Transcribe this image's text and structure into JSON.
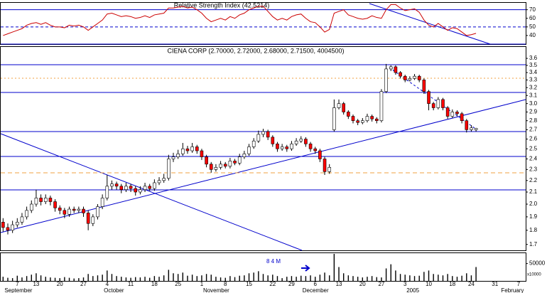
{
  "chart_data": [
    {
      "type": "line",
      "title": "Relative Strength Index (42.5214)",
      "color": "#cc0000",
      "level_color": "#0000cc",
      "ylim": [
        30,
        78
      ],
      "yticks": [
        40,
        50,
        60,
        70
      ],
      "levels": [
        70,
        50,
        30
      ],
      "values": [
        40,
        42,
        44,
        46,
        48,
        52,
        54,
        55,
        53,
        55,
        52,
        50,
        50,
        49,
        52,
        51,
        52,
        50,
        46,
        50,
        54,
        58,
        65,
        66,
        64,
        62,
        63,
        62,
        60,
        61,
        63,
        61,
        64,
        65,
        66,
        72,
        72,
        73,
        74,
        72,
        73,
        70,
        66,
        60,
        56,
        58,
        60,
        58,
        62,
        60,
        64,
        66,
        70,
        72,
        74,
        74,
        68,
        62,
        58,
        60,
        58,
        62,
        64,
        65,
        60,
        56,
        55,
        50,
        44,
        47,
        66,
        68,
        70,
        64,
        62,
        60,
        59,
        60,
        63,
        61,
        60,
        70,
        76,
        76,
        72,
        69,
        70,
        71,
        67,
        58,
        52,
        50,
        54,
        50,
        46,
        49,
        48,
        44,
        40,
        41,
        42.5214,
        null,
        null,
        null,
        null,
        null,
        null,
        null,
        null,
        null,
        null
      ]
    },
    {
      "type": "candlestick",
      "title": "CIENA CORP (2.70000, 2.72000, 2.68000, 2.71500, 4004500)",
      "log": true,
      "up_color": "#ffffff",
      "down_color": "#ff0000",
      "outline_color": "#000000",
      "ylim": [
        1.66,
        3.77
      ],
      "yticks": [
        1.7,
        1.8,
        1.9,
        {
          "value": 2,
          "label": "2.0"
        },
        2.1,
        2.2,
        2.3,
        2.4,
        2.5,
        2.6,
        2.7,
        2.8,
        2.9,
        {
          "value": 3,
          "label": "3.0"
        },
        3.1,
        3.2,
        3.3,
        3.4,
        3.5,
        3.6
      ],
      "categories": [
        null,
        null,
        null,
        "7",
        null,
        null,
        null,
        "13",
        null,
        null,
        null,
        null,
        "20",
        null,
        null,
        null,
        null,
        "27",
        null,
        null,
        null,
        null,
        "4",
        null,
        null,
        null,
        null,
        "11",
        null,
        null,
        null,
        null,
        "18",
        null,
        null,
        null,
        null,
        "25",
        null,
        null,
        null,
        null,
        "1",
        null,
        null,
        null,
        null,
        "8",
        null,
        null,
        null,
        null,
        "15",
        null,
        null,
        null,
        null,
        "22",
        null,
        null,
        null,
        "29",
        null,
        null,
        null,
        null,
        "6",
        null,
        null,
        null,
        null,
        "13",
        null,
        null,
        null,
        null,
        "20",
        null,
        null,
        null,
        "27",
        null,
        null,
        null,
        null,
        "3",
        null,
        null,
        null,
        null,
        "10",
        null,
        null,
        null,
        null,
        "18",
        null,
        null,
        null,
        "24",
        null,
        null,
        null,
        null,
        "31",
        null,
        null,
        null,
        null,
        "7",
        null
      ],
      "months": [
        "September",
        null,
        null,
        null,
        null,
        null,
        null,
        null,
        null,
        null,
        null,
        null,
        null,
        null,
        null,
        null,
        null,
        null,
        null,
        null,
        null,
        "October",
        null,
        null,
        null,
        null,
        null,
        null,
        null,
        null,
        null,
        null,
        null,
        null,
        null,
        null,
        null,
        null,
        null,
        null,
        null,
        null,
        "November",
        null,
        null,
        null,
        null,
        null,
        null,
        null,
        null,
        null,
        null,
        null,
        null,
        null,
        null,
        null,
        null,
        null,
        null,
        null,
        null,
        "December",
        null,
        null,
        null,
        null,
        null,
        null,
        null,
        null,
        null,
        null,
        null,
        null,
        null,
        null,
        null,
        null,
        null,
        null,
        null,
        null,
        null,
        "2005",
        null,
        null,
        null,
        null,
        null,
        null,
        null,
        null,
        null,
        null,
        null,
        null,
        null,
        null,
        null,
        null,
        null,
        null,
        null,
        "February",
        null,
        null,
        null,
        null,
        null
      ],
      "candles": [
        [
          1.86,
          1.89,
          1.79,
          1.82
        ],
        [
          1.82,
          1.85,
          1.77,
          1.8
        ],
        [
          1.8,
          1.87,
          1.78,
          1.84
        ],
        [
          1.84,
          1.89,
          1.82,
          1.86
        ],
        [
          1.86,
          1.93,
          1.84,
          1.9
        ],
        [
          1.9,
          1.98,
          1.88,
          1.95
        ],
        [
          1.95,
          2.03,
          1.93,
          2.0
        ],
        [
          2.0,
          2.12,
          1.98,
          2.05
        ],
        [
          2.05,
          2.08,
          1.99,
          2.02
        ],
        [
          2.02,
          2.08,
          2.0,
          2.05
        ],
        [
          2.05,
          2.07,
          1.99,
          2.02
        ],
        [
          2.02,
          2.04,
          1.94,
          1.97
        ],
        [
          1.97,
          1.99,
          1.92,
          1.95
        ],
        [
          1.95,
          1.97,
          1.89,
          1.92
        ],
        [
          1.92,
          1.98,
          1.9,
          1.96
        ],
        [
          1.96,
          1.98,
          1.93,
          1.95
        ],
        [
          1.95,
          1.98,
          1.93,
          1.96
        ],
        [
          1.96,
          1.98,
          1.9,
          1.93
        ],
        [
          1.93,
          1.95,
          1.8,
          1.85
        ],
        [
          1.85,
          1.92,
          1.83,
          1.9
        ],
        [
          1.9,
          2.0,
          1.88,
          1.98
        ],
        [
          1.98,
          2.08,
          1.96,
          2.05
        ],
        [
          2.05,
          2.25,
          2.03,
          2.15
        ],
        [
          2.15,
          2.2,
          2.12,
          2.17
        ],
        [
          2.17,
          2.19,
          2.12,
          2.15
        ],
        [
          2.15,
          2.17,
          2.09,
          2.12
        ],
        [
          2.12,
          2.18,
          2.1,
          2.15
        ],
        [
          2.15,
          2.17,
          2.1,
          2.13
        ],
        [
          2.13,
          2.15,
          2.07,
          2.1
        ],
        [
          2.1,
          2.15,
          2.08,
          2.12
        ],
        [
          2.12,
          2.18,
          2.1,
          2.15
        ],
        [
          2.15,
          2.17,
          2.11,
          2.13
        ],
        [
          2.13,
          2.21,
          2.11,
          2.18
        ],
        [
          2.18,
          2.23,
          2.16,
          2.2
        ],
        [
          2.2,
          2.26,
          2.18,
          2.22
        ],
        [
          2.22,
          2.44,
          2.2,
          2.4
        ],
        [
          2.4,
          2.46,
          2.37,
          2.42
        ],
        [
          2.42,
          2.49,
          2.4,
          2.45
        ],
        [
          2.45,
          2.56,
          2.43,
          2.5
        ],
        [
          2.5,
          2.53,
          2.45,
          2.48
        ],
        [
          2.48,
          2.56,
          2.46,
          2.52
        ],
        [
          2.52,
          2.54,
          2.45,
          2.48
        ],
        [
          2.48,
          2.5,
          2.39,
          2.42
        ],
        [
          2.42,
          2.44,
          2.32,
          2.35
        ],
        [
          2.35,
          2.37,
          2.27,
          2.3
        ],
        [
          2.3,
          2.35,
          2.28,
          2.32
        ],
        [
          2.32,
          2.38,
          2.3,
          2.35
        ],
        [
          2.35,
          2.37,
          2.31,
          2.33
        ],
        [
          2.33,
          2.41,
          2.31,
          2.38
        ],
        [
          2.38,
          2.4,
          2.34,
          2.36
        ],
        [
          2.36,
          2.45,
          2.34,
          2.42
        ],
        [
          2.42,
          2.48,
          2.4,
          2.45
        ],
        [
          2.45,
          2.55,
          2.43,
          2.52
        ],
        [
          2.52,
          2.61,
          2.5,
          2.58
        ],
        [
          2.58,
          2.69,
          2.56,
          2.65
        ],
        [
          2.65,
          2.71,
          2.62,
          2.68
        ],
        [
          2.68,
          2.7,
          2.59,
          2.62
        ],
        [
          2.62,
          2.64,
          2.52,
          2.55
        ],
        [
          2.55,
          2.57,
          2.47,
          2.5
        ],
        [
          2.5,
          2.55,
          2.48,
          2.52
        ],
        [
          2.52,
          2.54,
          2.47,
          2.5
        ],
        [
          2.5,
          2.58,
          2.48,
          2.55
        ],
        [
          2.55,
          2.61,
          2.53,
          2.58
        ],
        [
          2.58,
          2.63,
          2.56,
          2.6
        ],
        [
          2.6,
          2.62,
          2.52,
          2.55
        ],
        [
          2.55,
          2.57,
          2.47,
          2.5
        ],
        [
          2.5,
          2.52,
          2.45,
          2.48
        ],
        [
          2.48,
          2.5,
          2.37,
          2.4
        ],
        [
          2.4,
          2.42,
          2.25,
          2.28
        ],
        [
          2.28,
          2.35,
          2.26,
          2.32
        ],
        [
          2.7,
          3.05,
          2.68,
          2.95
        ],
        [
          2.95,
          3.05,
          2.93,
          3.0
        ],
        [
          3.0,
          3.02,
          2.87,
          2.9
        ],
        [
          2.9,
          2.92,
          2.82,
          2.85
        ],
        [
          2.85,
          2.87,
          2.77,
          2.8
        ],
        [
          2.8,
          2.82,
          2.75,
          2.78
        ],
        [
          2.78,
          2.83,
          2.76,
          2.8
        ],
        [
          2.8,
          2.88,
          2.78,
          2.85
        ],
        [
          2.85,
          2.87,
          2.79,
          2.82
        ],
        [
          2.82,
          2.84,
          2.77,
          2.8
        ],
        [
          2.8,
          3.18,
          2.78,
          3.15
        ],
        [
          3.15,
          3.52,
          3.13,
          3.45
        ],
        [
          3.45,
          3.5,
          3.42,
          3.48
        ],
        [
          3.48,
          3.5,
          3.37,
          3.4
        ],
        [
          3.4,
          3.42,
          3.32,
          3.35
        ],
        [
          3.35,
          3.37,
          3.27,
          3.3
        ],
        [
          3.3,
          3.35,
          3.28,
          3.32
        ],
        [
          3.32,
          3.38,
          3.3,
          3.35
        ],
        [
          3.35,
          3.37,
          3.27,
          3.3
        ],
        [
          3.3,
          3.32,
          3.12,
          3.15
        ],
        [
          3.15,
          3.17,
          2.92,
          3.0
        ],
        [
          3.0,
          3.02,
          2.92,
          2.95
        ],
        [
          2.95,
          3.08,
          2.93,
          3.05
        ],
        [
          3.05,
          3.07,
          2.92,
          2.95
        ],
        [
          2.95,
          2.97,
          2.82,
          2.85
        ],
        [
          2.85,
          2.93,
          2.83,
          2.9
        ],
        [
          2.9,
          2.92,
          2.85,
          2.88
        ],
        [
          2.88,
          2.9,
          2.77,
          2.8
        ],
        [
          2.8,
          2.82,
          2.67,
          2.7
        ],
        [
          2.7,
          2.75,
          2.68,
          2.72
        ],
        [
          2.7,
          2.72,
          2.68,
          2.715
        ],
        null,
        null,
        null,
        null,
        null,
        null,
        null,
        null,
        null,
        null
      ]
    },
    {
      "type": "bar",
      "color": "#000000",
      "annotation": "8 4 M",
      "unit_label": "x10000",
      "ylim": [
        0,
        80000
      ],
      "yticks": [
        50000
      ],
      "values": [
        12000,
        9000,
        8000,
        15000,
        10000,
        14000,
        18000,
        22000,
        16000,
        12000,
        10000,
        9000,
        8000,
        11000,
        9000,
        7000,
        8000,
        10000,
        20000,
        14000,
        16000,
        18000,
        30000,
        20000,
        14000,
        12000,
        10000,
        9000,
        11000,
        10000,
        12000,
        9000,
        14000,
        12000,
        16000,
        32000,
        22000,
        20000,
        24000,
        15000,
        18000,
        14000,
        16000,
        20000,
        18000,
        12000,
        10000,
        9000,
        14000,
        11000,
        15000,
        16000,
        22000,
        24000,
        28000,
        20000,
        16000,
        18000,
        14000,
        8000,
        12000,
        14000,
        12000,
        15000,
        14000,
        16000,
        12000,
        18000,
        24000,
        16000,
        78000,
        40000,
        22000,
        16000,
        14000,
        12000,
        10000,
        12000,
        14000,
        11000,
        10000,
        36000,
        48000,
        30000,
        20000,
        18000,
        16000,
        14000,
        15000,
        26000,
        30000,
        20000,
        18000,
        16000,
        20000,
        14000,
        12000,
        15000,
        22000,
        16000,
        40045,
        null,
        null,
        null,
        null,
        null,
        null,
        null,
        null,
        null,
        null
      ]
    }
  ]
}
